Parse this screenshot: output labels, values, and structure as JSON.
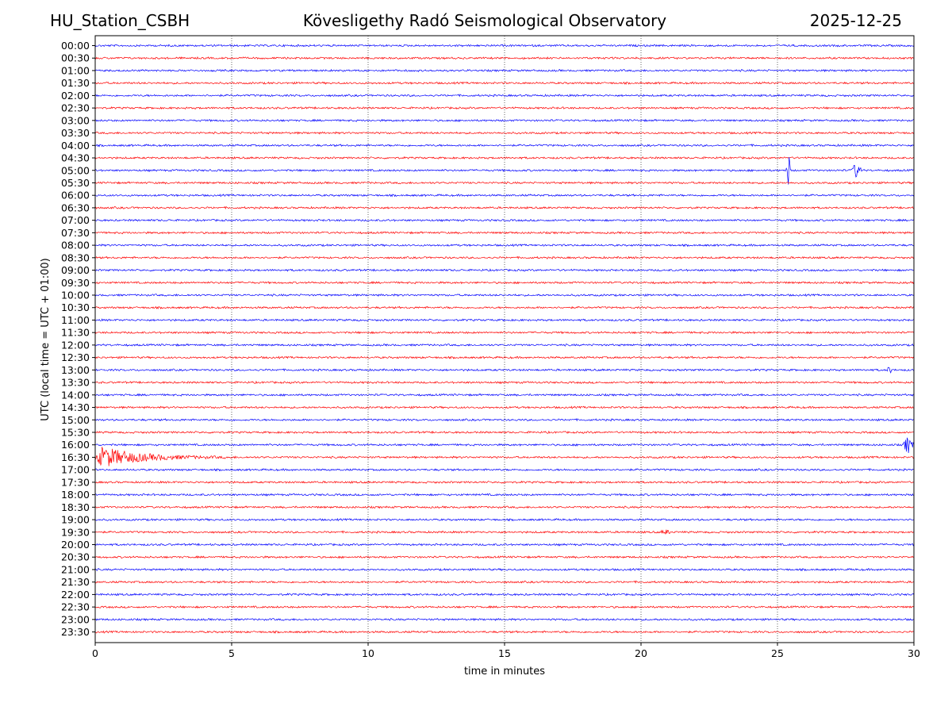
{
  "header": {
    "station": "HU_Station_CSBH",
    "title": "Kövesligethy Radó Seismological Observatory",
    "date": "2025-12-25"
  },
  "chart_data": {
    "type": "helicorder",
    "title": "Kövesligethy Radó Seismological Observatory",
    "xlabel": "time in minutes",
    "ylabel": "UTC (local time = UTC + 01:00)",
    "xlim": [
      0,
      30
    ],
    "xticks": [
      0,
      5,
      10,
      15,
      20,
      25,
      30
    ],
    "grid": "vertical dotted at each x tick",
    "row_labels": [
      "00:00",
      "00:30",
      "01:00",
      "01:30",
      "02:00",
      "02:30",
      "03:00",
      "03:30",
      "04:00",
      "04:30",
      "05:00",
      "05:30",
      "06:00",
      "06:30",
      "07:00",
      "07:30",
      "08:00",
      "08:30",
      "09:00",
      "09:30",
      "10:00",
      "10:30",
      "11:00",
      "11:30",
      "12:00",
      "12:30",
      "13:00",
      "13:30",
      "14:00",
      "14:30",
      "15:00",
      "15:30",
      "16:00",
      "16:30",
      "17:00",
      "17:30",
      "18:00",
      "18:30",
      "19:00",
      "19:30",
      "20:00",
      "20:30",
      "21:00",
      "21:30",
      "22:00",
      "22:30",
      "23:00",
      "23:30"
    ],
    "trace_colors": [
      "#0000ff",
      "#ff0000"
    ],
    "events": [
      {
        "row": "05:00",
        "start_min": 25.3,
        "end_min": 25.5,
        "amplitude": 3.0
      },
      {
        "row": "05:00",
        "start_min": 27.7,
        "end_min": 28.1,
        "amplitude": 1.4
      },
      {
        "row": "13:00",
        "start_min": 29.0,
        "end_min": 29.2,
        "amplitude": 0.6
      },
      {
        "row": "16:00",
        "start_min": 29.6,
        "end_min": 30.0,
        "amplitude": 1.7
      },
      {
        "row": "16:30",
        "start_min": 0.0,
        "end_min": 5.2,
        "amplitude": 2.2
      },
      {
        "row": "19:30",
        "start_min": 20.7,
        "end_min": 21.1,
        "amplitude": 0.4
      }
    ]
  }
}
